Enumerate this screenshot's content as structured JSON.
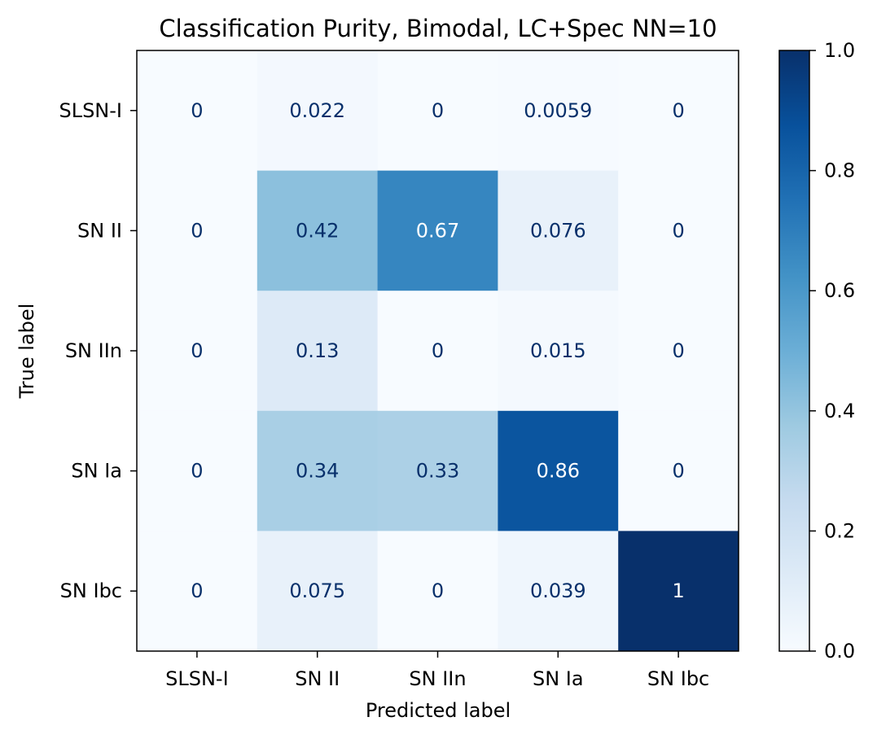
{
  "chart_data": {
    "type": "heatmap",
    "title": "Classification Purity, Bimodal, LC+Spec NN=10",
    "xlabel": "Predicted label",
    "ylabel": "True label",
    "x_categories": [
      "SLSN-I",
      "SN II",
      "SN IIn",
      "SN Ia",
      "SN Ibc"
    ],
    "y_categories": [
      "SLSN-I",
      "SN II",
      "SN IIn",
      "SN Ia",
      "SN Ibc"
    ],
    "values": [
      [
        0,
        0.022,
        0,
        0.0059,
        0
      ],
      [
        0,
        0.42,
        0.67,
        0.076,
        0
      ],
      [
        0,
        0.13,
        0,
        0.015,
        0
      ],
      [
        0,
        0.34,
        0.33,
        0.86,
        0
      ],
      [
        0,
        0.075,
        0,
        0.039,
        1
      ]
    ],
    "value_labels": [
      [
        "0",
        "0.022",
        "0",
        "0.0059",
        "0"
      ],
      [
        "0",
        "0.42",
        "0.67",
        "0.076",
        "0"
      ],
      [
        "0",
        "0.13",
        "0",
        "0.015",
        "0"
      ],
      [
        "0",
        "0.34",
        "0.33",
        "0.86",
        "0"
      ],
      [
        "0",
        "0.075",
        "0",
        "0.039",
        "1"
      ]
    ],
    "colormap": "Blues",
    "colorbar": {
      "range": [
        0.0,
        1.0
      ],
      "ticks": [
        0.0,
        0.2,
        0.4,
        0.6,
        0.8,
        1.0
      ],
      "tick_labels": [
        "0.0",
        "0.2",
        "0.4",
        "0.6",
        "0.8",
        "1.0"
      ]
    },
    "text_colors": {
      "dark": "#08306b",
      "light": "#ffffff"
    }
  }
}
